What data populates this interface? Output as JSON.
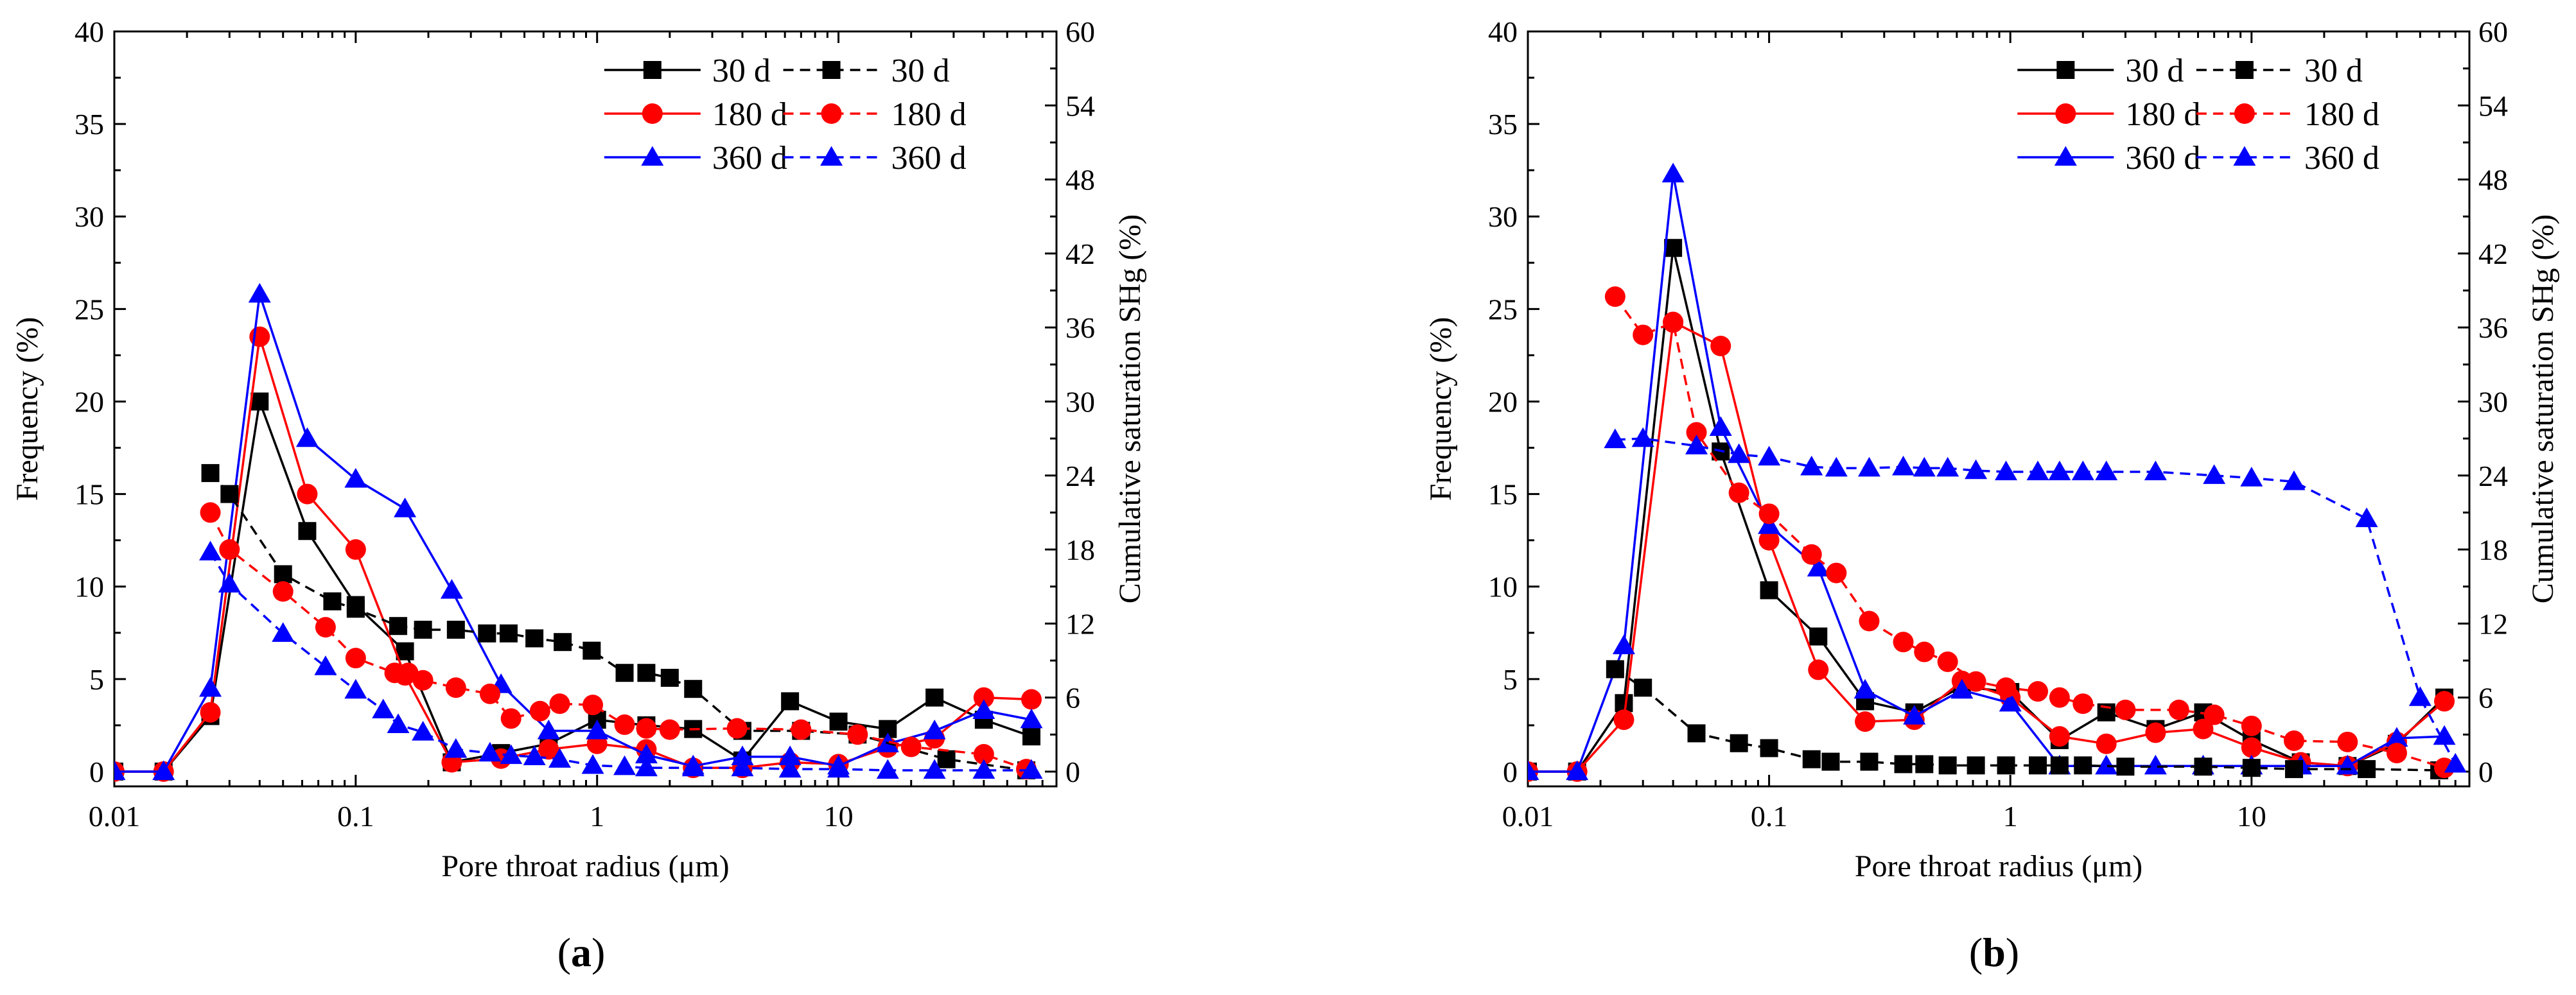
{
  "chart_data": [
    {
      "type": "line",
      "panel_label": "(a)",
      "panel_letter": "a",
      "xlabel": "Pore throat radius (μm)",
      "ylabel": "Frequency (%)",
      "y2label": "Cumulative saturation SHg (%)",
      "xscale": "log",
      "xlim": [
        0.01,
        80
      ],
      "ylim": [
        -0.8,
        40
      ],
      "y2lim": [
        -1.2,
        60
      ],
      "xticks": [
        0.01,
        0.1,
        1,
        10
      ],
      "xtick_labels": [
        "0.01",
        "0.1",
        "1",
        "10"
      ],
      "yticks": [
        0,
        5,
        10,
        15,
        20,
        25,
        30,
        35,
        40
      ],
      "ytick_labels": [
        "0",
        "5",
        "10",
        "15",
        "20",
        "25",
        "30",
        "35",
        "40"
      ],
      "y2ticks": [
        0,
        6,
        12,
        18,
        24,
        30,
        36,
        42,
        48,
        54,
        60
      ],
      "y2tick_labels": [
        "0",
        "6",
        "12",
        "18",
        "24",
        "30",
        "36",
        "42",
        "48",
        "54",
        "60"
      ],
      "legend_position": "top-right",
      "series": [
        {
          "name": "30 d",
          "axis": "left",
          "color": "#000000",
          "marker": "square",
          "dash": false,
          "x": [
            0.01,
            0.016,
            0.025,
            0.04,
            0.063,
            0.1,
            0.16,
            0.25,
            0.4,
            0.63,
            1.0,
            1.6,
            2.5,
            4.0,
            6.3,
            10,
            16,
            25,
            40,
            63
          ],
          "y": [
            0,
            0,
            3,
            20,
            13,
            9,
            6.5,
            0.5,
            1,
            1.5,
            2.8,
            2.5,
            2.3,
            0.6,
            3.8,
            2.7,
            2.3,
            4.0,
            2.8,
            1.9
          ]
        },
        {
          "name": "180 d",
          "axis": "left",
          "color": "#ff0000",
          "marker": "circle",
          "dash": false,
          "x": [
            0.01,
            0.016,
            0.025,
            0.04,
            0.063,
            0.1,
            0.16,
            0.25,
            0.4,
            0.63,
            1.0,
            1.6,
            2.5,
            4.0,
            6.3,
            10,
            16,
            25,
            40,
            63
          ],
          "y": [
            0,
            0,
            3.2,
            23.5,
            15,
            12,
            5.2,
            0.5,
            0.7,
            1.2,
            1.5,
            1.2,
            0.2,
            0.2,
            0.5,
            0.4,
            1.3,
            1.8,
            4,
            3.9
          ]
        },
        {
          "name": "360 d",
          "axis": "left",
          "color": "#0000ff",
          "marker": "triangle",
          "dash": false,
          "x": [
            0.01,
            0.016,
            0.025,
            0.04,
            0.063,
            0.1,
            0.16,
            0.25,
            0.4,
            0.63,
            1.0,
            1.6,
            2.5,
            4.0,
            6.3,
            10,
            16,
            25,
            40,
            63
          ],
          "y": [
            0,
            0,
            4.5,
            25.8,
            18,
            15.8,
            14.2,
            9.8,
            4.7,
            2.2,
            2.2,
            0.9,
            0.3,
            0.8,
            0.8,
            0.3,
            1.5,
            2.2,
            3.3,
            2.8
          ]
        },
        {
          "name": "30 d",
          "axis": "right",
          "color": "#000000",
          "marker": "square",
          "dash": true,
          "x": [
            0.025,
            0.03,
            0.05,
            0.08,
            0.1,
            0.15,
            0.19,
            0.26,
            0.35,
            0.43,
            0.55,
            0.72,
            0.95,
            1.3,
            1.6,
            2.0,
            2.5,
            4.0,
            7,
            12,
            28,
            60
          ],
          "y": [
            24.2,
            22.5,
            16,
            13.8,
            13.2,
            11.8,
            11.5,
            11.5,
            11.2,
            11.2,
            10.8,
            10.5,
            9.8,
            8.0,
            8.0,
            7.6,
            6.7,
            3.3,
            3.3,
            3.0,
            1.0,
            0.1
          ]
        },
        {
          "name": "180 d",
          "axis": "right",
          "color": "#ff0000",
          "marker": "circle",
          "dash": true,
          "x": [
            0.025,
            0.03,
            0.05,
            0.075,
            0.1,
            0.145,
            0.165,
            0.19,
            0.26,
            0.36,
            0.44,
            0.58,
            0.7,
            0.96,
            1.3,
            1.6,
            2.0,
            3.8,
            7,
            12,
            20,
            40,
            60
          ],
          "y": [
            21,
            18,
            14.6,
            11.7,
            9.2,
            8.0,
            8.0,
            7.4,
            6.8,
            6.3,
            4.3,
            4.9,
            5.5,
            5.4,
            3.8,
            3.5,
            3.4,
            3.5,
            3.4,
            3.0,
            2.0,
            1.4,
            0.2
          ]
        },
        {
          "name": "360 d",
          "axis": "right",
          "color": "#0000ff",
          "marker": "triangle",
          "dash": true,
          "x": [
            0.025,
            0.03,
            0.05,
            0.075,
            0.1,
            0.13,
            0.15,
            0.19,
            0.26,
            0.36,
            0.44,
            0.55,
            0.7,
            0.96,
            1.3,
            1.6,
            2.5,
            4.0,
            6.3,
            10,
            16,
            25,
            40,
            63
          ],
          "y": [
            17.8,
            15.2,
            11.2,
            8.5,
            6.6,
            5.0,
            3.8,
            3.2,
            1.8,
            1.5,
            1.3,
            1.2,
            1.0,
            0.5,
            0.4,
            0.3,
            0.3,
            0.3,
            0.2,
            0.2,
            0.1,
            0.1,
            0.1,
            0.1
          ]
        }
      ]
    },
    {
      "type": "line",
      "panel_label": "(b)",
      "panel_letter": "b",
      "xlabel": "Pore throat radius (μm)",
      "ylabel": "Frequency (%)",
      "y2label": "Cumulative saturation SHg (%)",
      "xscale": "log",
      "xlim": [
        0.01,
        80
      ],
      "ylim": [
        -0.8,
        40
      ],
      "y2lim": [
        -1.2,
        60
      ],
      "xticks": [
        0.01,
        0.1,
        1,
        10
      ],
      "xtick_labels": [
        "0.01",
        "0.1",
        "1",
        "10"
      ],
      "yticks": [
        0,
        5,
        10,
        15,
        20,
        25,
        30,
        35,
        40
      ],
      "ytick_labels": [
        "0",
        "5",
        "10",
        "15",
        "20",
        "25",
        "30",
        "35",
        "40"
      ],
      "y2ticks": [
        0,
        6,
        12,
        18,
        24,
        30,
        36,
        42,
        48,
        54,
        60
      ],
      "y2tick_labels": [
        "0",
        "6",
        "12",
        "18",
        "24",
        "30",
        "36",
        "42",
        "48",
        "54",
        "60"
      ],
      "legend_position": "top-right",
      "series": [
        {
          "name": "30 d",
          "axis": "left",
          "color": "#000000",
          "marker": "square",
          "dash": false,
          "x": [
            0.01,
            0.016,
            0.025,
            0.04,
            0.063,
            0.1,
            0.16,
            0.25,
            0.4,
            0.63,
            1.0,
            1.6,
            2.5,
            4.0,
            6.3,
            10,
            16,
            25,
            40,
            63
          ],
          "y": [
            0,
            0,
            3.7,
            28.3,
            17.3,
            9.8,
            7.3,
            3.8,
            3.2,
            4.6,
            4.3,
            1.7,
            3.2,
            2.3,
            3.2,
            1.7,
            0.5,
            0.3,
            1.5,
            4.0
          ]
        },
        {
          "name": "180 d",
          "axis": "left",
          "color": "#ff0000",
          "marker": "circle",
          "dash": false,
          "x": [
            0.01,
            0.016,
            0.025,
            0.04,
            0.063,
            0.1,
            0.16,
            0.25,
            0.4,
            0.63,
            1.0,
            1.6,
            2.5,
            4.0,
            6.3,
            10,
            16,
            25,
            40,
            63
          ],
          "y": [
            0,
            0,
            2.8,
            24.3,
            23,
            12.5,
            5.5,
            2.7,
            2.8,
            4.9,
            4.0,
            1.9,
            1.5,
            2.1,
            2.3,
            1.3,
            0.5,
            0.3,
            1.6,
            3.8
          ]
        },
        {
          "name": "360 d",
          "axis": "left",
          "color": "#0000ff",
          "marker": "triangle",
          "dash": false,
          "x": [
            0.01,
            0.016,
            0.025,
            0.04,
            0.063,
            0.1,
            0.16,
            0.25,
            0.4,
            0.63,
            1.0,
            1.6,
            2.5,
            4.0,
            6.3,
            10,
            16,
            25,
            40,
            63
          ],
          "y": [
            0,
            0,
            6.8,
            32.3,
            18.6,
            13.3,
            11,
            4.4,
            3,
            4.4,
            3.7,
            0.3,
            0.3,
            0.3,
            0.3,
            0.3,
            0.3,
            0.3,
            1.8,
            1.9
          ]
        },
        {
          "name": "30 d",
          "axis": "right",
          "color": "#000000",
          "marker": "square",
          "dash": true,
          "x": [
            0.023,
            0.03,
            0.05,
            0.075,
            0.1,
            0.15,
            0.18,
            0.26,
            0.36,
            0.44,
            0.55,
            0.72,
            0.96,
            1.3,
            1.6,
            2.0,
            3.0,
            6.3,
            10,
            15,
            30,
            60
          ],
          "y": [
            8.3,
            6.8,
            3.1,
            2.3,
            1.9,
            1.0,
            0.8,
            0.8,
            0.6,
            0.6,
            0.5,
            0.5,
            0.5,
            0.5,
            0.5,
            0.5,
            0.4,
            0.4,
            0.3,
            0.2,
            0.2,
            0.1
          ]
        },
        {
          "name": "180 d",
          "axis": "right",
          "color": "#ff0000",
          "marker": "circle",
          "dash": true,
          "x": [
            0.023,
            0.03,
            0.04,
            0.05,
            0.075,
            0.1,
            0.15,
            0.19,
            0.26,
            0.36,
            0.44,
            0.55,
            0.72,
            0.96,
            1.3,
            1.6,
            2.0,
            3.0,
            5.0,
            7,
            10,
            15,
            25,
            40,
            63
          ],
          "y": [
            38.5,
            35.4,
            36.4,
            27.5,
            22.6,
            20.9,
            17.6,
            16.1,
            12.2,
            10.5,
            9.7,
            8.9,
            7.3,
            6.8,
            6.5,
            6.0,
            5.5,
            5.0,
            5.0,
            4.6,
            3.7,
            2.5,
            2.4,
            1.5,
            0.3
          ]
        },
        {
          "name": "360 d",
          "axis": "right",
          "color": "#0000ff",
          "marker": "triangle",
          "dash": true,
          "x": [
            0.023,
            0.03,
            0.05,
            0.075,
            0.1,
            0.15,
            0.19,
            0.26,
            0.36,
            0.44,
            0.55,
            0.72,
            0.96,
            1.3,
            1.6,
            2.0,
            2.5,
            4.0,
            7,
            10,
            15,
            30,
            50,
            70
          ],
          "y": [
            26.9,
            27,
            26.4,
            25.7,
            25.5,
            24.7,
            24.6,
            24.6,
            24.7,
            24.6,
            24.6,
            24.4,
            24.3,
            24.3,
            24.3,
            24.3,
            24.3,
            24.3,
            24,
            23.8,
            23.5,
            20.5,
            6,
            0.6
          ]
        }
      ]
    }
  ]
}
